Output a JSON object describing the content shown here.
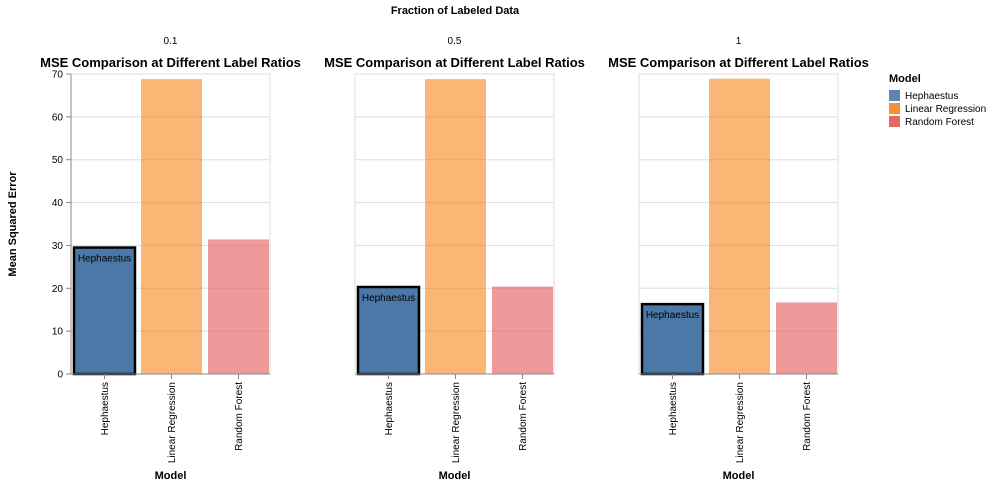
{
  "figure": {
    "column_header_title": "Fraction of Labeled Data",
    "y_axis_title": "Mean Squared Error",
    "x_axis_title": "Model"
  },
  "legend": {
    "title": "Model",
    "placement": "top-right",
    "items": [
      {
        "label": "Hephaestus",
        "color": "#4c78a8"
      },
      {
        "label": "Linear Regression",
        "color": "#f58518"
      },
      {
        "label": "Random Forest",
        "color": "#e45756"
      }
    ]
  },
  "chart_data": [
    {
      "type": "bar",
      "facet_label": "0.1",
      "title": "MSE Comparison at Different Label Ratios",
      "categories": [
        "Hephaestus",
        "Linear Regression",
        "Random Forest"
      ],
      "values": [
        29.5,
        68.8,
        31.4
      ],
      "highlight": {
        "category": "Hephaestus",
        "label": "Hephaestus"
      },
      "xlabel": "Model",
      "ylabel": "Mean Squared Error",
      "ylim": [
        0,
        70
      ],
      "yticks": [
        0,
        10,
        20,
        30,
        40,
        50,
        60,
        70
      ],
      "grid": true
    },
    {
      "type": "bar",
      "facet_label": "0.5",
      "title": "MSE Comparison at Different Label Ratios",
      "categories": [
        "Hephaestus",
        "Linear Regression",
        "Random Forest"
      ],
      "values": [
        20.3,
        68.8,
        20.4
      ],
      "highlight": {
        "category": "Hephaestus",
        "label": "Hephaestus"
      },
      "xlabel": "Model",
      "ylabel": "",
      "ylim": [
        0,
        70
      ],
      "yticks": [
        0,
        10,
        20,
        30,
        40,
        50,
        60,
        70
      ],
      "grid": true
    },
    {
      "type": "bar",
      "facet_label": "1",
      "title": "MSE Comparison at Different Label Ratios",
      "categories": [
        "Hephaestus",
        "Linear Regression",
        "Random Forest"
      ],
      "values": [
        16.3,
        68.9,
        16.7
      ],
      "highlight": {
        "category": "Hephaestus",
        "label": "Hephaestus"
      },
      "xlabel": "Model",
      "ylabel": "",
      "ylim": [
        0,
        70
      ],
      "yticks": [
        0,
        10,
        20,
        30,
        40,
        50,
        60,
        70
      ],
      "grid": true
    }
  ]
}
